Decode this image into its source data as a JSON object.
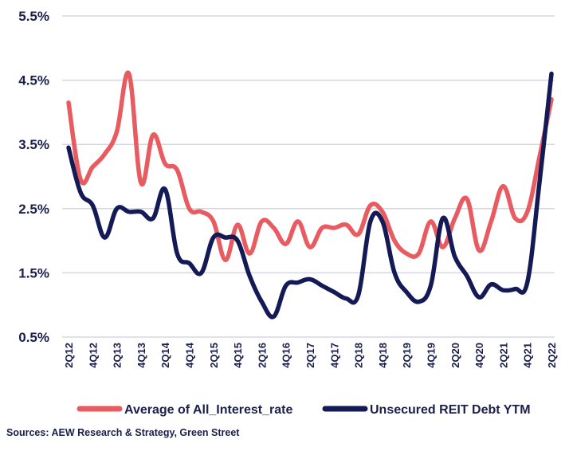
{
  "chart_data": {
    "type": "line",
    "title": "",
    "xlabel": "",
    "ylabel": "",
    "ylim": [
      0.5,
      5.5
    ],
    "yticks": [
      "5.5%",
      "4.5%",
      "3.5%",
      "2.5%",
      "1.5%",
      "0.5%"
    ],
    "yticks_values": [
      5.5,
      4.5,
      3.5,
      2.5,
      1.5,
      0.5
    ],
    "grid": true,
    "legend_position": "bottom",
    "categories": [
      "2Q12",
      "3Q12",
      "4Q12",
      "1Q13",
      "2Q13",
      "3Q13",
      "4Q13",
      "1Q14",
      "2Q14",
      "3Q14",
      "4Q14",
      "1Q15",
      "2Q15",
      "3Q15",
      "4Q15",
      "1Q16",
      "2Q16",
      "3Q16",
      "4Q16",
      "1Q17",
      "2Q17",
      "3Q17",
      "4Q17",
      "1Q18",
      "2Q18",
      "3Q18",
      "4Q18",
      "1Q19",
      "2Q19",
      "3Q19",
      "4Q19",
      "1Q20",
      "2Q20",
      "3Q20",
      "4Q20",
      "1Q21",
      "2Q21",
      "3Q21",
      "4Q21",
      "1Q22",
      "2Q22"
    ],
    "x_tick_labels": [
      "2Q12",
      "4Q12",
      "2Q13",
      "4Q13",
      "2Q14",
      "4Q14",
      "2Q15",
      "4Q15",
      "2Q16",
      "4Q16",
      "2Q17",
      "4Q17",
      "2Q18",
      "4Q18",
      "2Q19",
      "4Q19",
      "2Q20",
      "4Q20",
      "2Q21",
      "4Q21",
      "2Q22"
    ],
    "series": [
      {
        "name": "Average of All_Interest_rate",
        "color": "#e85c61",
        "values": [
          4.15,
          2.95,
          3.15,
          3.35,
          3.7,
          4.6,
          2.9,
          3.65,
          3.2,
          3.1,
          2.5,
          2.45,
          2.3,
          1.7,
          2.25,
          1.8,
          2.3,
          2.2,
          1.95,
          2.3,
          1.9,
          2.2,
          2.2,
          2.25,
          2.1,
          2.55,
          2.45,
          2.0,
          1.8,
          1.8,
          2.3,
          1.9,
          2.35,
          2.65,
          1.85,
          2.3,
          2.85,
          2.35,
          2.45,
          3.3,
          4.2
        ]
      },
      {
        "name": "Unsecured REIT Debt YTM",
        "color": "#131a56",
        "values": [
          3.45,
          2.75,
          2.55,
          2.05,
          2.5,
          2.45,
          2.45,
          2.35,
          2.8,
          1.8,
          1.65,
          1.5,
          2.05,
          2.05,
          2.0,
          1.45,
          1.05,
          0.82,
          1.3,
          1.35,
          1.4,
          1.3,
          1.2,
          1.1,
          1.15,
          2.3,
          2.3,
          1.5,
          1.2,
          1.05,
          1.3,
          2.35,
          1.75,
          1.45,
          1.12,
          1.32,
          1.23,
          1.25,
          1.35,
          2.9,
          4.6
        ]
      }
    ]
  },
  "source_text": "Sources: AEW Research & Strategy, Green Street"
}
